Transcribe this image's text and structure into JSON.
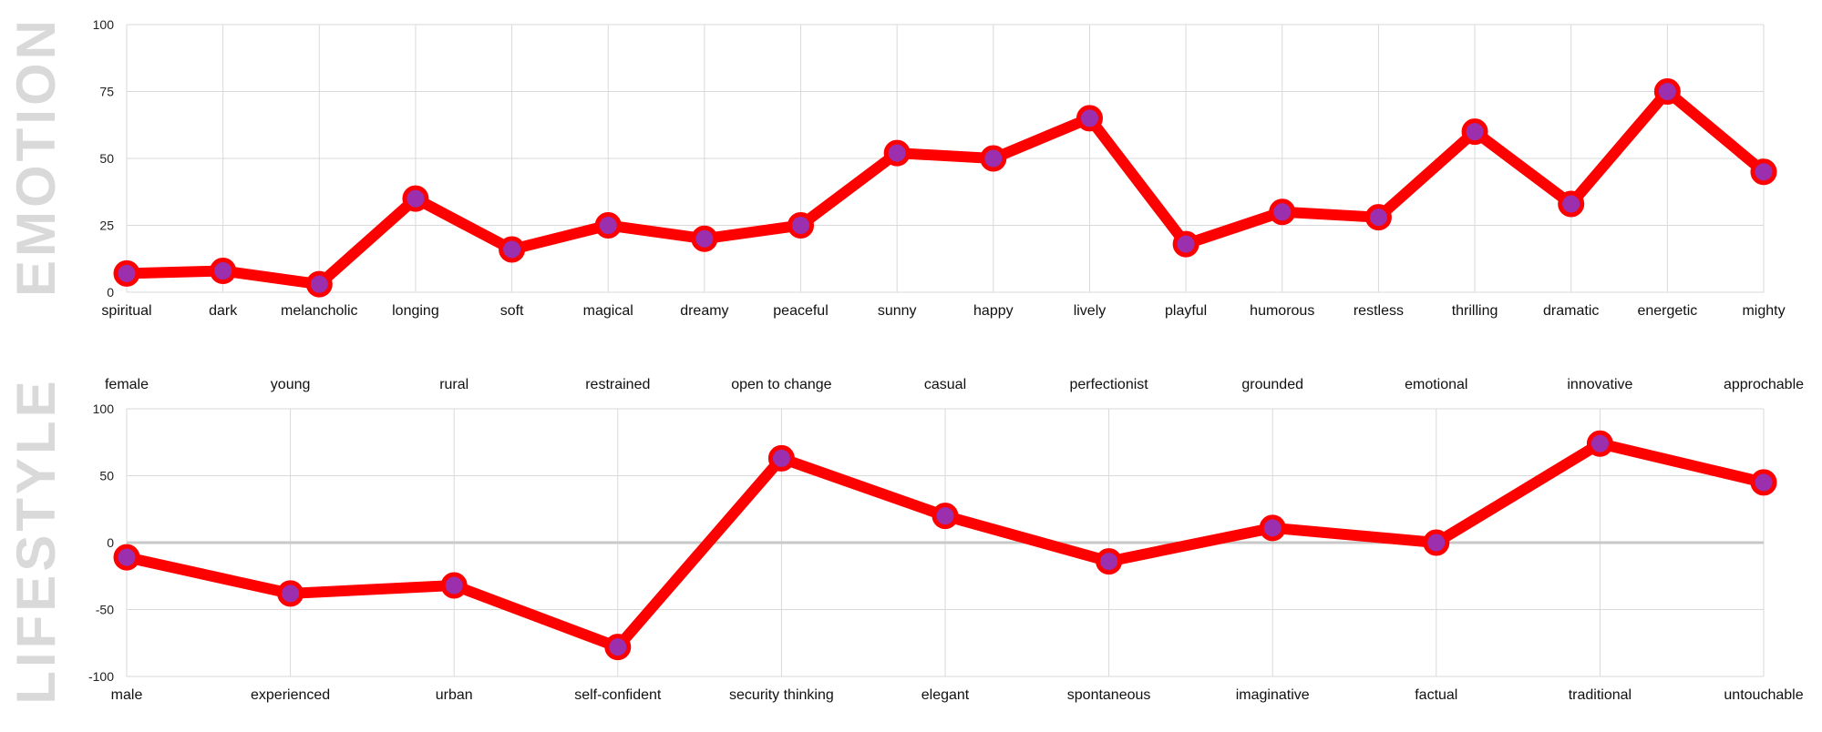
{
  "colors": {
    "line": "#ff0000",
    "marker_fill": "#9b2fae",
    "marker_edge": "#ff0000",
    "grid": "#d9d9d9",
    "zero_line": "#c8c8c8",
    "side_label": "#d9d9d9"
  },
  "chart_data": [
    {
      "type": "line",
      "side_label": "EMOTION",
      "categories": [
        "spiritual",
        "dark",
        "melancholic",
        "longing",
        "soft",
        "magical",
        "dreamy",
        "peaceful",
        "sunny",
        "happy",
        "lively",
        "playful",
        "humorous",
        "restless",
        "thrilling",
        "dramatic",
        "energetic",
        "mighty"
      ],
      "values": [
        7,
        8,
        3,
        35,
        16,
        25,
        20,
        25,
        52,
        50,
        65,
        18,
        30,
        28,
        60,
        33,
        75,
        45
      ],
      "ylim": [
        0,
        100
      ],
      "yticks": [
        "0",
        "25",
        "50",
        "75",
        "100"
      ],
      "grid": true
    },
    {
      "type": "line",
      "side_label": "LIFESTYLE",
      "top_labels": [
        "female",
        "young",
        "rural",
        "restrained",
        "open to change",
        "casual",
        "perfectionist",
        "grounded",
        "emotional",
        "innovative",
        "approchable"
      ],
      "categories": [
        "male",
        "experienced",
        "urban",
        "self-confident",
        "security thinking",
        "elegant",
        "spontaneous",
        "imaginative",
        "factual",
        "traditional",
        "untouchable"
      ],
      "values": [
        -11,
        -38,
        -32,
        -78,
        63,
        20,
        -14,
        11,
        0,
        74,
        45
      ],
      "ylim": [
        -100,
        100
      ],
      "yticks": [
        "-100",
        "-50",
        "0",
        "50",
        "100"
      ],
      "grid": true
    }
  ]
}
